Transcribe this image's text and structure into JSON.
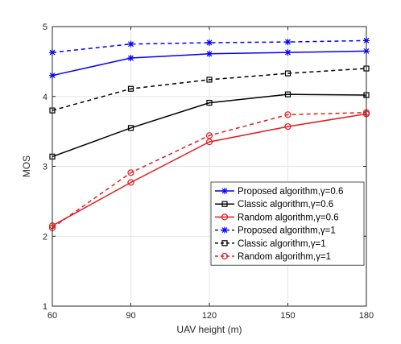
{
  "chart_data": {
    "type": "line",
    "xlabel": "UAV height (m)",
    "ylabel": "MOS",
    "x": [
      60,
      90,
      120,
      150,
      180
    ],
    "xlim": [
      60,
      180
    ],
    "ylim": [
      1,
      5
    ],
    "xticks": [
      "60",
      "90",
      "120",
      "150",
      "180"
    ],
    "yticks": [
      "1",
      "2",
      "3",
      "4",
      "5"
    ],
    "grid": true,
    "legend_position": "bottom-right",
    "series": [
      {
        "name": "Proposed algorithm,γ=0.6",
        "values": [
          4.3,
          4.55,
          4.61,
          4.63,
          4.65
        ],
        "color": "#0000ff",
        "dash": "solid",
        "marker": "star"
      },
      {
        "name": "Classic algorithm,γ=0.6",
        "values": [
          3.14,
          3.55,
          3.91,
          4.03,
          4.02
        ],
        "color": "#000000",
        "dash": "solid",
        "marker": "square"
      },
      {
        "name": "Random algorithm,γ=0.6",
        "values": [
          2.15,
          2.77,
          3.35,
          3.57,
          3.75
        ],
        "color": "#e41a1c",
        "dash": "solid",
        "marker": "circle"
      },
      {
        "name": "Proposed algorithm,γ=1",
        "values": [
          4.63,
          4.75,
          4.77,
          4.78,
          4.8
        ],
        "color": "#0000ff",
        "dash": "dashed",
        "marker": "star"
      },
      {
        "name": "Classic algorithm,γ=1",
        "values": [
          3.8,
          4.11,
          4.24,
          4.33,
          4.4
        ],
        "color": "#000000",
        "dash": "dashed",
        "marker": "square"
      },
      {
        "name": "Random algorithm,γ=1",
        "values": [
          2.12,
          2.91,
          3.44,
          3.74,
          3.77
        ],
        "color": "#e41a1c",
        "dash": "dashed",
        "marker": "circle"
      }
    ]
  }
}
